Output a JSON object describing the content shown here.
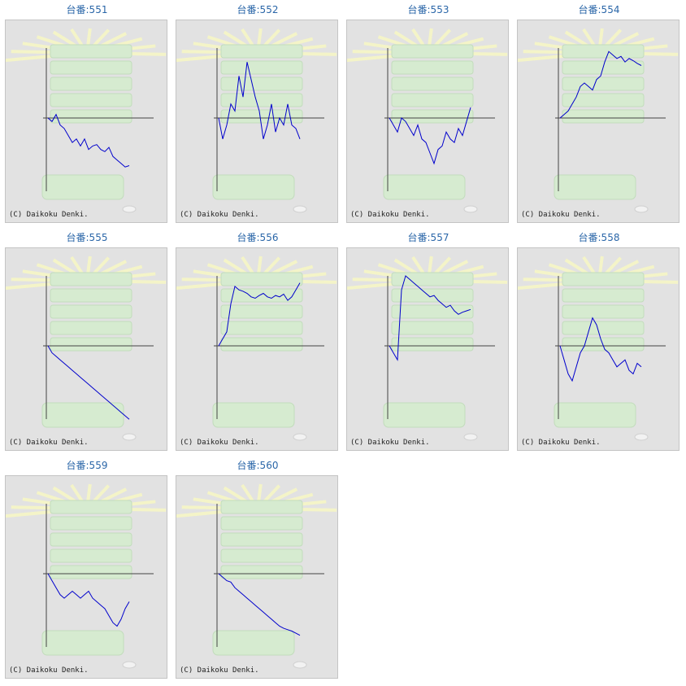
{
  "copyright": "(C) Daikoku Denki.",
  "colors": {
    "title": "#2a66a8",
    "line": "#0000cc",
    "axis": "#444444",
    "panel_bg": "#e2e2e2"
  },
  "chart_data": [
    {
      "type": "line",
      "title": "台番:551",
      "x": [
        0,
        5,
        10,
        15,
        20,
        25,
        30,
        35,
        40,
        45,
        50,
        55,
        60,
        65,
        70,
        75,
        80,
        85,
        90,
        95,
        100
      ],
      "y": [
        0,
        -5,
        5,
        -10,
        -15,
        -25,
        -35,
        -30,
        -40,
        -30,
        -45,
        -40,
        -38,
        -45,
        -48,
        -42,
        -55,
        -60,
        -65,
        -70,
        -68
      ]
    },
    {
      "type": "line",
      "title": "台番:552",
      "x": [
        0,
        5,
        10,
        15,
        20,
        25,
        30,
        35,
        40,
        45,
        50,
        55,
        60,
        65,
        70,
        75,
        80,
        85,
        90,
        95,
        100
      ],
      "y": [
        0,
        -30,
        -10,
        20,
        10,
        60,
        30,
        80,
        55,
        30,
        10,
        -30,
        -10,
        20,
        -20,
        0,
        -10,
        20,
        -10,
        -15,
        -30
      ]
    },
    {
      "type": "line",
      "title": "台番:553",
      "x": [
        0,
        5,
        10,
        15,
        20,
        25,
        30,
        35,
        40,
        45,
        50,
        55,
        60,
        65,
        70,
        75,
        80,
        85,
        90,
        95,
        100
      ],
      "y": [
        0,
        -10,
        -20,
        0,
        -5,
        -15,
        -25,
        -10,
        -30,
        -35,
        -50,
        -65,
        -45,
        -40,
        -20,
        -30,
        -35,
        -15,
        -25,
        -5,
        15
      ]
    },
    {
      "type": "line",
      "title": "台番:554",
      "x": [
        0,
        5,
        10,
        15,
        20,
        25,
        30,
        35,
        40,
        45,
        50,
        55,
        60,
        65,
        70,
        75,
        80,
        85,
        90,
        95,
        100
      ],
      "y": [
        0,
        5,
        10,
        20,
        30,
        45,
        50,
        45,
        40,
        55,
        60,
        80,
        95,
        90,
        85,
        88,
        80,
        85,
        82,
        78,
        75
      ]
    },
    {
      "type": "line",
      "title": "台番:555",
      "x": [
        0,
        5,
        10,
        15,
        20,
        25,
        30,
        35,
        40,
        45,
        50,
        55,
        60,
        65,
        70,
        75,
        80,
        85,
        90,
        95,
        100
      ],
      "y": [
        0,
        -10,
        -15,
        -20,
        -25,
        -30,
        -35,
        -40,
        -45,
        -50,
        -55,
        -60,
        -65,
        -70,
        -75,
        -80,
        -85,
        -90,
        -95,
        -100,
        -105
      ]
    },
    {
      "type": "line",
      "title": "台番:556",
      "x": [
        0,
        5,
        10,
        15,
        20,
        25,
        30,
        35,
        40,
        45,
        50,
        55,
        60,
        65,
        70,
        75,
        80,
        85,
        90,
        95,
        100
      ],
      "y": [
        0,
        10,
        20,
        60,
        85,
        80,
        78,
        75,
        70,
        68,
        72,
        75,
        70,
        68,
        72,
        70,
        74,
        65,
        70,
        80,
        90
      ]
    },
    {
      "type": "line",
      "title": "台番:557",
      "x": [
        0,
        5,
        10,
        15,
        20,
        25,
        30,
        35,
        40,
        45,
        50,
        55,
        60,
        65,
        70,
        75,
        80,
        85,
        90,
        95,
        100
      ],
      "y": [
        0,
        -10,
        -20,
        80,
        100,
        95,
        90,
        85,
        80,
        75,
        70,
        72,
        65,
        60,
        55,
        58,
        50,
        45,
        48,
        50,
        52
      ]
    },
    {
      "type": "line",
      "title": "台番:558",
      "x": [
        0,
        5,
        10,
        15,
        20,
        25,
        30,
        35,
        40,
        45,
        50,
        55,
        60,
        65,
        70,
        75,
        80,
        85,
        90,
        95,
        100
      ],
      "y": [
        0,
        -20,
        -40,
        -50,
        -30,
        -10,
        0,
        20,
        40,
        30,
        10,
        -5,
        -10,
        -20,
        -30,
        -25,
        -20,
        -35,
        -40,
        -25,
        -30
      ]
    },
    {
      "type": "line",
      "title": "台番:559",
      "x": [
        0,
        5,
        10,
        15,
        20,
        25,
        30,
        35,
        40,
        45,
        50,
        55,
        60,
        65,
        70,
        75,
        80,
        85,
        90,
        95,
        100
      ],
      "y": [
        0,
        -10,
        -20,
        -30,
        -35,
        -30,
        -25,
        -30,
        -35,
        -30,
        -25,
        -35,
        -40,
        -45,
        -50,
        -60,
        -70,
        -75,
        -65,
        -50,
        -40
      ]
    },
    {
      "type": "line",
      "title": "台番:560",
      "x": [
        0,
        5,
        10,
        15,
        20,
        25,
        30,
        35,
        40,
        45,
        50,
        55,
        60,
        65,
        70,
        75,
        80,
        85,
        90,
        95,
        100
      ],
      "y": [
        0,
        -5,
        -10,
        -12,
        -20,
        -25,
        -30,
        -35,
        -40,
        -45,
        -50,
        -55,
        -60,
        -65,
        -70,
        -75,
        -78,
        -80,
        -82,
        -85,
        -88
      ]
    }
  ]
}
